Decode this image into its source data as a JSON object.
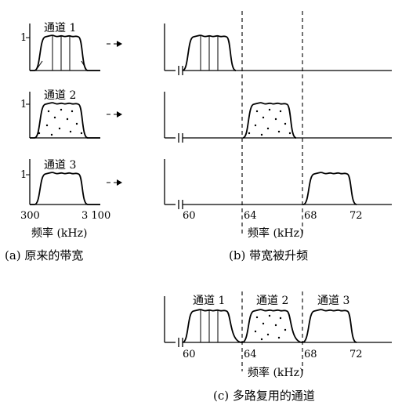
{
  "left_panel": {
    "channel_labels": [
      "通道 1",
      "通道 2",
      "通道 3"
    ],
    "y_tick": "1",
    "x_tick_low": "300",
    "x_tick_high": "3 100",
    "x_axis_label": "频率 (kHz)",
    "caption": "(a) 原来的带宽"
  },
  "right_panel": {
    "x_ticks": [
      "60",
      "64",
      "68",
      "72"
    ],
    "x_axis_label": "频率 (kHz)",
    "caption": "(b) 带宽被升频"
  },
  "bottom_panel": {
    "channel_labels": [
      "通道 1",
      "通道 2",
      "通道 3"
    ],
    "x_ticks": [
      "60",
      "64",
      "68",
      "72"
    ],
    "x_axis_label": "频率 (kHz)",
    "caption": "(c) 多路复用的通道"
  }
}
